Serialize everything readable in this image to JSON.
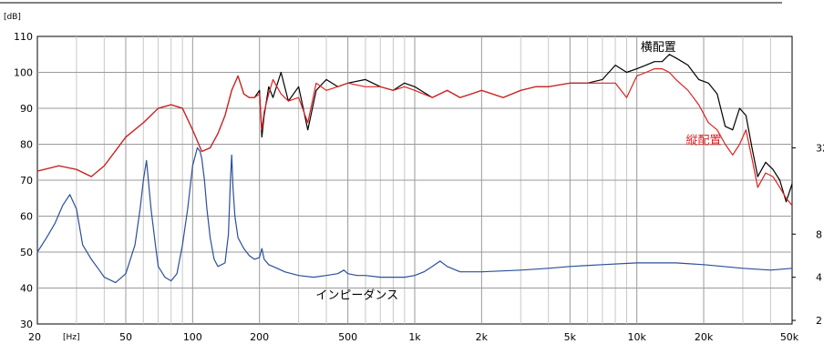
{
  "chart_data": {
    "type": "line",
    "title": "",
    "xscale": "log",
    "xlim": [
      20,
      50000
    ],
    "ylim": [
      30,
      110
    ],
    "xlabel": "",
    "ylabel": "",
    "x_unit_label": "[Hz]",
    "y_unit_label": "[dB]",
    "x_ticks": [
      20,
      50,
      100,
      200,
      500,
      1000,
      2000,
      5000,
      10000,
      20000,
      50000
    ],
    "x_tick_labels": [
      "20",
      "50",
      "100",
      "200",
      "500",
      "1k",
      "2k",
      "5k",
      "10k",
      "20k",
      "50k"
    ],
    "y_ticks": [
      30,
      40,
      50,
      60,
      70,
      80,
      90,
      100,
      110
    ],
    "y_tick_labels": [
      "30",
      "40",
      "50",
      "60",
      "70",
      "80",
      "90",
      "100",
      "110"
    ],
    "right_axis": {
      "label": "impedance",
      "ticks": [
        {
          "db": 31,
          "label": "2"
        },
        {
          "db": 43,
          "label": "4"
        },
        {
          "db": 55,
          "label": "8"
        },
        {
          "db": 79,
          "label": "32"
        }
      ]
    },
    "grid": true,
    "series": [
      {
        "name": "横配置",
        "color": "#000000",
        "x": [
          20,
          25,
          30,
          35,
          40,
          50,
          60,
          70,
          80,
          90,
          100,
          110,
          120,
          130,
          140,
          150,
          160,
          170,
          180,
          190,
          200,
          205,
          210,
          220,
          230,
          250,
          270,
          300,
          330,
          360,
          400,
          450,
          500,
          600,
          700,
          800,
          900,
          1000,
          1200,
          1400,
          1600,
          1800,
          2000,
          2500,
          3000,
          3500,
          4000,
          5000,
          6000,
          7000,
          8000,
          9000,
          10000,
          11000,
          12000,
          13000,
          14000,
          15000,
          17000,
          19000,
          21000,
          23000,
          25000,
          27000,
          29000,
          31000,
          33000,
          35000,
          38000,
          41000,
          44000,
          47000,
          50000
        ],
        "y": [
          72.5,
          74,
          73,
          71,
          74,
          82,
          86,
          90,
          91,
          90,
          84,
          78,
          79,
          83,
          88,
          95,
          99,
          94,
          93,
          93,
          95,
          82,
          88,
          96,
          93,
          100,
          92,
          96,
          84,
          95,
          98,
          96,
          97,
          98,
          96,
          95,
          97,
          96,
          93,
          95,
          93,
          94,
          95,
          93,
          95,
          96,
          96,
          97,
          97,
          98,
          102,
          100,
          101,
          102,
          103,
          103,
          105,
          104,
          102,
          98,
          97,
          94,
          85,
          84,
          90,
          88,
          79,
          71,
          75,
          73,
          70,
          64,
          69
        ]
      },
      {
        "name": "縦配置",
        "color": "#e02020",
        "x": [
          20,
          25,
          30,
          35,
          40,
          50,
          60,
          70,
          80,
          90,
          100,
          110,
          120,
          130,
          140,
          150,
          160,
          170,
          180,
          190,
          200,
          205,
          210,
          220,
          230,
          250,
          270,
          300,
          330,
          360,
          400,
          450,
          500,
          600,
          700,
          800,
          900,
          1000,
          1200,
          1400,
          1600,
          1800,
          2000,
          2500,
          3000,
          3500,
          4000,
          5000,
          6000,
          7000,
          8000,
          9000,
          10000,
          11000,
          12000,
          13000,
          14000,
          15000,
          17000,
          19000,
          21000,
          23000,
          25000,
          27000,
          29000,
          31000,
          33000,
          35000,
          38000,
          41000,
          44000,
          47000,
          50000
        ],
        "y": [
          72.5,
          74,
          73,
          71,
          74,
          82,
          86,
          90,
          91,
          90,
          84,
          78,
          79,
          83,
          88,
          95,
          99,
          94,
          93,
          93,
          94,
          84,
          89,
          94,
          98,
          94,
          92,
          93,
          86,
          97,
          95,
          96,
          97,
          96,
          96,
          95,
          96,
          95,
          93,
          95,
          93,
          94,
          95,
          93,
          95,
          96,
          96,
          97,
          97,
          97,
          97,
          93,
          99,
          100,
          101,
          101,
          100,
          98,
          95,
          91,
          86,
          84,
          80,
          77,
          80,
          84,
          76,
          68,
          72,
          71,
          68,
          65,
          63
        ]
      },
      {
        "name": "インピーダンス",
        "color": "#2a4f9a",
        "x": [
          20,
          22,
          24,
          26,
          28,
          30,
          32,
          35,
          38,
          40,
          45,
          50,
          55,
          58,
          60,
          62,
          65,
          68,
          70,
          75,
          80,
          85,
          90,
          95,
          100,
          105,
          108,
          110,
          113,
          116,
          120,
          125,
          130,
          140,
          145,
          148,
          150,
          152,
          155,
          160,
          170,
          180,
          190,
          200,
          205,
          210,
          220,
          240,
          260,
          300,
          350,
          400,
          450,
          480,
          500,
          550,
          600,
          700,
          800,
          900,
          1000,
          1100,
          1200,
          1300,
          1400,
          1600,
          2000,
          3000,
          4000,
          5000,
          7000,
          10000,
          15000,
          20000,
          30000,
          40000,
          50000
        ],
        "y": [
          50,
          54,
          58,
          63,
          66,
          62,
          52,
          48,
          45,
          43,
          41.5,
          44,
          52,
          62,
          70,
          75.5,
          62,
          52,
          46,
          43,
          42,
          44,
          52,
          62,
          74,
          79,
          78,
          76,
          70,
          62,
          54,
          48,
          46,
          47,
          55,
          70,
          77,
          68,
          60,
          54,
          51,
          49,
          48,
          48.5,
          51,
          48,
          46.5,
          45.5,
          44.5,
          43.5,
          43,
          43.5,
          44,
          45,
          44,
          43.5,
          43.5,
          43,
          43,
          43,
          43.5,
          44.5,
          46,
          47.5,
          46,
          44.5,
          44.5,
          45,
          45.5,
          46,
          46.5,
          47,
          47,
          46.5,
          45.5,
          45,
          45.5
        ]
      }
    ],
    "annotations": [
      {
        "text": "横配置",
        "series": 0,
        "x": 12500,
        "y": 106
      },
      {
        "text": "縦配置",
        "series": 1,
        "x": 20000,
        "y": 80
      },
      {
        "text": "インピーダンス",
        "series": 2,
        "x": 550,
        "y": 37
      }
    ]
  }
}
